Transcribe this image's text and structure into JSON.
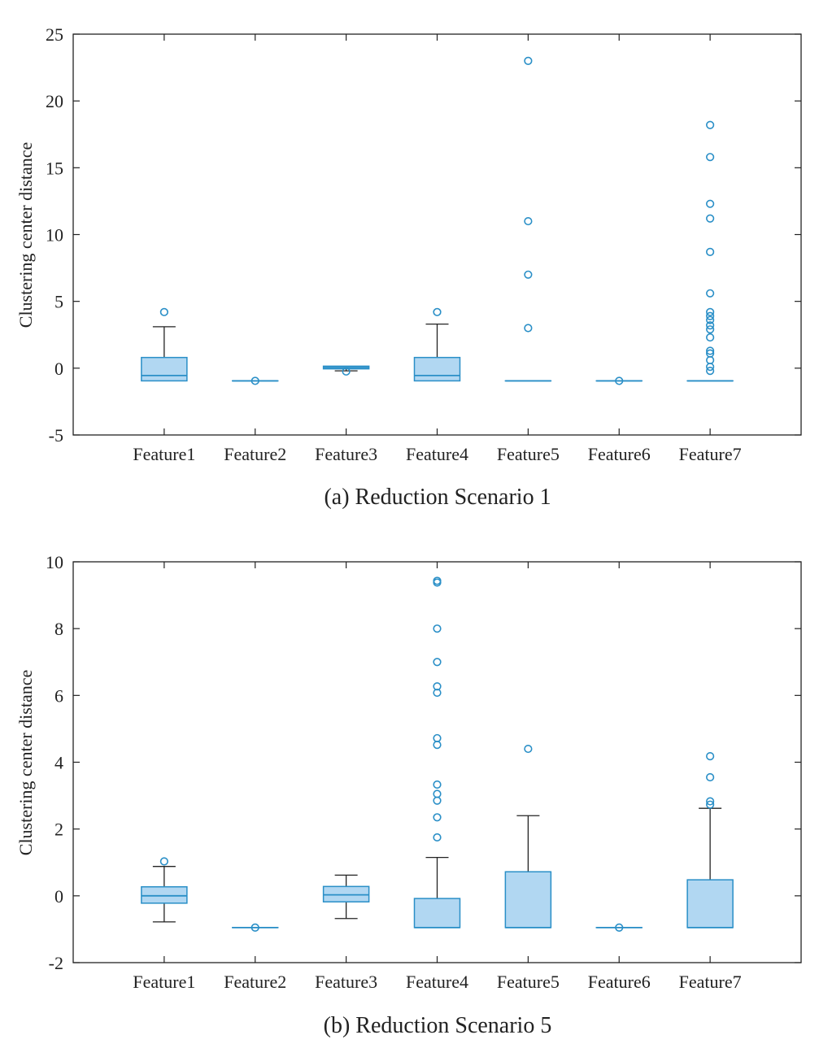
{
  "colors": {
    "box_fill": "#b1d7f2",
    "box_stroke": "#2a8fc7",
    "whisker": "#222222",
    "outlier": "#2a8fc7",
    "axis": "#222222"
  },
  "chart_data": [
    {
      "type": "boxplot",
      "caption": "(a) Reduction Scenario 1",
      "ylabel": "Clustering center distance",
      "ylim": [
        -5,
        25
      ],
      "yticks": [
        -5,
        0,
        5,
        10,
        15,
        20,
        25
      ],
      "ytick_labels": [
        "-5",
        "0",
        "5",
        "10",
        "15",
        "20",
        "25"
      ],
      "categories": [
        "Feature1",
        "Feature2",
        "Feature3",
        "Feature4",
        "Feature5",
        "Feature6",
        "Feature7"
      ],
      "boxes": [
        {
          "name": "Feature1",
          "whisker_low": -0.95,
          "q1": -0.95,
          "median": -0.55,
          "q3": 0.8,
          "whisker_high": 3.1,
          "outliers": [
            4.2
          ]
        },
        {
          "name": "Feature2",
          "whisker_low": -0.95,
          "q1": -0.95,
          "median": -0.95,
          "q3": -0.95,
          "whisker_high": -0.95,
          "outliers": [
            -0.95
          ]
        },
        {
          "name": "Feature3",
          "whisker_low": -0.2,
          "q1": -0.05,
          "median": 0.05,
          "q3": 0.15,
          "whisker_high": 0.15,
          "outliers": [
            -0.25
          ]
        },
        {
          "name": "Feature4",
          "whisker_low": -0.95,
          "q1": -0.95,
          "median": -0.55,
          "q3": 0.8,
          "whisker_high": 3.3,
          "outliers": [
            4.2
          ]
        },
        {
          "name": "Feature5",
          "whisker_low": -0.95,
          "q1": -0.95,
          "median": -0.95,
          "q3": -0.95,
          "whisker_high": -0.95,
          "outliers": [
            3.0,
            7.0,
            11.0,
            23.0
          ]
        },
        {
          "name": "Feature6",
          "whisker_low": -0.95,
          "q1": -0.95,
          "median": -0.95,
          "q3": -0.95,
          "whisker_high": -0.95,
          "outliers": [
            -0.95
          ]
        },
        {
          "name": "Feature7",
          "whisker_low": -0.95,
          "q1": -0.95,
          "median": -0.95,
          "q3": -0.95,
          "whisker_high": -0.95,
          "outliers": [
            -0.2,
            0.1,
            0.6,
            1.1,
            1.3,
            2.3,
            2.9,
            3.2,
            3.6,
            3.9,
            4.2,
            5.6,
            8.7,
            11.2,
            12.3,
            15.8,
            18.2
          ]
        }
      ]
    },
    {
      "type": "boxplot",
      "caption": "(b) Reduction Scenario 5",
      "ylabel": "Clustering center distance",
      "ylim": [
        -2,
        10
      ],
      "yticks": [
        -2,
        0,
        2,
        4,
        6,
        8,
        10
      ],
      "ytick_labels": [
        "-2",
        "0",
        "2",
        "4",
        "6",
        "8",
        "10"
      ],
      "categories": [
        "Feature1",
        "Feature2",
        "Feature3",
        "Feature4",
        "Feature5",
        "Feature6",
        "Feature7"
      ],
      "boxes": [
        {
          "name": "Feature1",
          "whisker_low": -0.78,
          "q1": -0.22,
          "median": 0.0,
          "q3": 0.27,
          "whisker_high": 0.88,
          "outliers": [
            1.03
          ]
        },
        {
          "name": "Feature2",
          "whisker_low": -0.95,
          "q1": -0.95,
          "median": -0.95,
          "q3": -0.95,
          "whisker_high": -0.95,
          "outliers": [
            -0.95
          ]
        },
        {
          "name": "Feature3",
          "whisker_low": -0.68,
          "q1": -0.18,
          "median": 0.03,
          "q3": 0.28,
          "whisker_high": 0.62,
          "outliers": []
        },
        {
          "name": "Feature4",
          "whisker_low": -0.95,
          "q1": -0.95,
          "median": -0.95,
          "q3": -0.08,
          "whisker_high": 1.15,
          "outliers": [
            1.75,
            2.35,
            2.85,
            3.05,
            3.33,
            4.52,
            4.72,
            6.08,
            6.27,
            7.0,
            8.0,
            9.38,
            9.43
          ]
        },
        {
          "name": "Feature5",
          "whisker_low": -0.95,
          "q1": -0.95,
          "median": -0.95,
          "q3": 0.72,
          "whisker_high": 2.4,
          "outliers": [
            4.4
          ]
        },
        {
          "name": "Feature6",
          "whisker_low": -0.95,
          "q1": -0.95,
          "median": -0.95,
          "q3": -0.95,
          "whisker_high": -0.95,
          "outliers": [
            -0.95
          ]
        },
        {
          "name": "Feature7",
          "whisker_low": -0.95,
          "q1": -0.95,
          "median": -0.95,
          "q3": 0.48,
          "whisker_high": 2.62,
          "outliers": [
            2.73,
            2.83,
            3.55,
            4.18
          ]
        }
      ]
    }
  ]
}
